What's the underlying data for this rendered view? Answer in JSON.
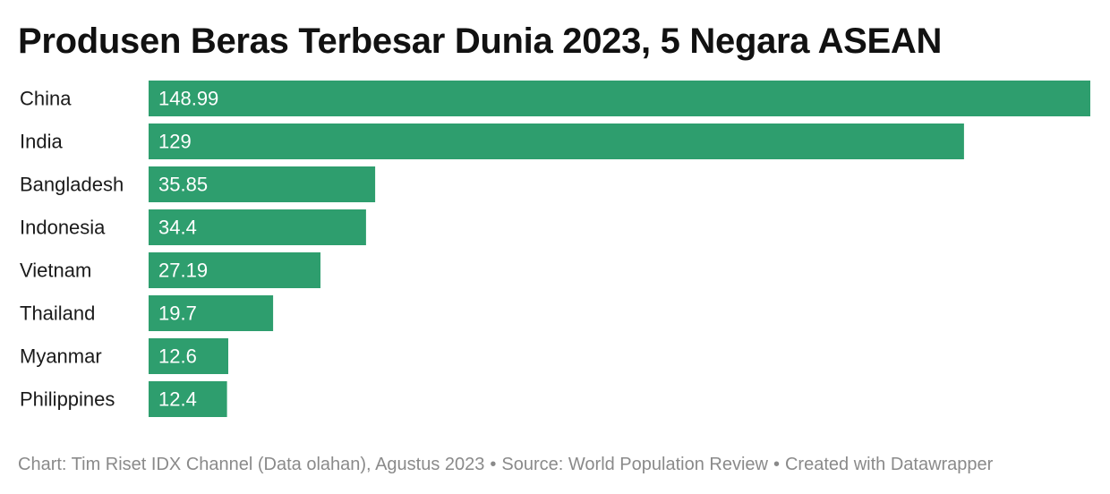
{
  "chart_data": {
    "type": "bar",
    "orientation": "horizontal",
    "title": "Produsen Beras Terbesar Dunia 2023, 5 Negara ASEAN",
    "categories": [
      "China",
      "India",
      "Bangladesh",
      "Indonesia",
      "Vietnam",
      "Thailand",
      "Myanmar",
      "Philippines"
    ],
    "values": [
      148.99,
      129,
      35.85,
      34.4,
      27.19,
      19.7,
      12.6,
      12.4
    ],
    "value_labels": [
      "148.99",
      "129",
      "35.85",
      "34.4",
      "27.19",
      "19.7",
      "12.6",
      "12.4"
    ],
    "bar_color": "#2e9e6e",
    "value_label_color": "#ffffff",
    "grid": false,
    "xlim": [
      0,
      148.99
    ]
  },
  "footer": {
    "chart_credit": "Chart: Tim Riset IDX Channel (Data olahan), Agustus 2023",
    "source": "Source: World Population Review",
    "created_with": "Created with Datawrapper",
    "separator": "•"
  }
}
